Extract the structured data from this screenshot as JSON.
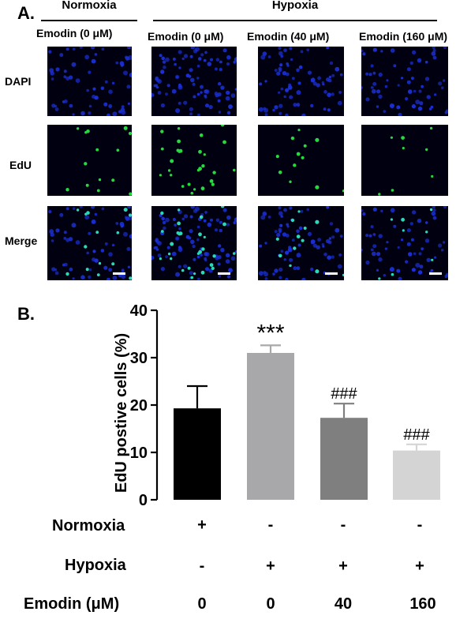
{
  "panel_a": {
    "label": "A.",
    "groups": [
      {
        "title": "Normoxia"
      },
      {
        "title": "Hypoxia"
      }
    ],
    "columns": [
      "Emodin (0 μM)",
      "Emodin (0 μM)",
      "Emodin (40 μM)",
      "Emodin (160 μM)"
    ],
    "rows": [
      "DAPI",
      "EdU",
      "Merge"
    ],
    "colors": {
      "dapi": "#1a2fd6",
      "edu": "#27d93f",
      "background": "#000010"
    }
  },
  "panel_b": {
    "label": "B.",
    "conditions": [
      {
        "label": "Normoxia",
        "values": [
          "+",
          "-",
          "-",
          "-"
        ]
      },
      {
        "label": "Hypoxia",
        "values": [
          "-",
          "+",
          "+",
          "+"
        ]
      },
      {
        "label": "Emodin (μM)",
        "values": [
          "0",
          "0",
          "40",
          "160"
        ]
      }
    ]
  },
  "chart_data": {
    "type": "bar",
    "ylabel": "EdU postive cells (%)",
    "ylim": [
      0,
      40
    ],
    "yticks": [
      0,
      10,
      20,
      30,
      40
    ],
    "categories": [
      "0",
      "0",
      "40",
      "160"
    ],
    "values": [
      19.3,
      31.0,
      17.3,
      10.4
    ],
    "errors": [
      4.7,
      1.6,
      3.0,
      1.3
    ],
    "bar_colors": [
      "#000000",
      "#a8a8ab",
      "#7f7f7f",
      "#d4d4d4"
    ],
    "annotations": [
      "",
      "***",
      "###",
      "###"
    ]
  }
}
